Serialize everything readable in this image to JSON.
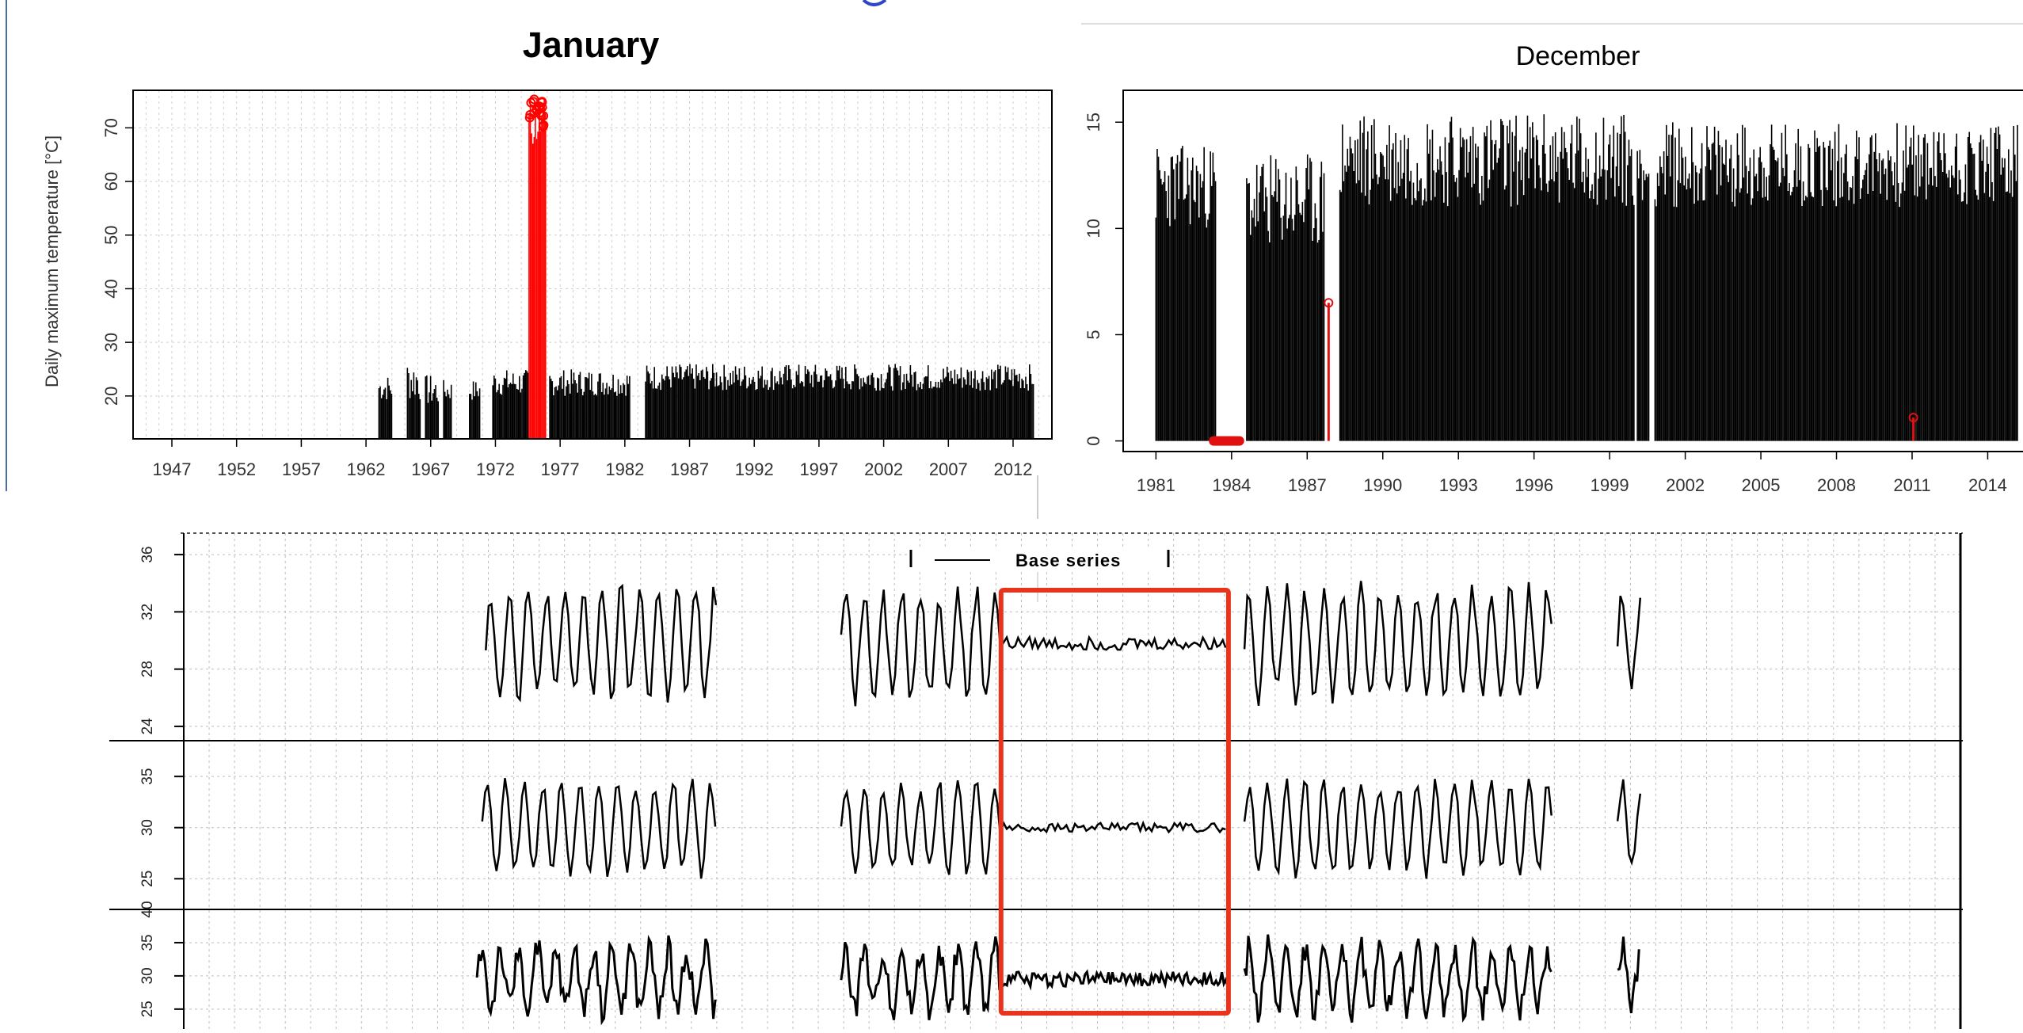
{
  "chart_data": [
    {
      "type": "bar",
      "title": "January",
      "xlabel": "",
      "ylabel": "Daily maximum temperature [°C]",
      "xlim": [
        1944,
        2015
      ],
      "ylim": [
        12,
        77
      ],
      "yticks": [
        20,
        30,
        40,
        50,
        60,
        70
      ],
      "xticks": [
        "1947",
        "1952",
        "1957",
        "1962",
        "1967",
        "1972",
        "1977",
        "1982",
        "1987",
        "1992",
        "1997",
        "2002",
        "2007",
        "2012"
      ],
      "grid": true,
      "series": [
        {
          "color": "#000000",
          "values": [
            {
              "start": 1963.0,
              "end": 1964.0,
              "low": 19,
              "high": 24
            },
            {
              "start": 1965.2,
              "end": 1966.2,
              "low": 19,
              "high": 27
            },
            {
              "start": 1966.6,
              "end": 1967.6,
              "low": 18,
              "high": 24
            },
            {
              "start": 1968.0,
              "end": 1968.6,
              "low": 19,
              "high": 23
            },
            {
              "start": 1970.0,
              "end": 1970.8,
              "low": 19,
              "high": 23
            },
            {
              "start": 1971.8,
              "end": 1974.6,
              "low": 20,
              "high": 25
            },
            {
              "start": 1976.2,
              "end": 1982.4,
              "low": 20,
              "high": 25
            },
            {
              "start": 1983.6,
              "end": 2013.6,
              "low": 21,
              "high": 26
            }
          ]
        },
        {
          "color": "#ff0000",
          "values": [
            {
              "start": 1974.6,
              "end": 1975.9,
              "low": 66,
              "high": 76
            }
          ]
        }
      ]
    },
    {
      "type": "bar",
      "title": "December",
      "xlim": [
        1979.7,
        2015.4
      ],
      "ylim": [
        -0.5,
        16.5
      ],
      "yticks": [
        0,
        5,
        10,
        15
      ],
      "xticks": [
        "1981",
        "1984",
        "1987",
        "1990",
        "1993",
        "1996",
        "1999",
        "2002",
        "2005",
        "2008",
        "2011",
        "2014"
      ],
      "grid": false,
      "series": [
        {
          "color": "#000000",
          "values": [
            {
              "start": 1981.0,
              "end": 1983.4,
              "low": 10,
              "high": 14
            },
            {
              "start": 1984.6,
              "end": 1987.7,
              "low": 9,
              "high": 13.5
            },
            {
              "start": 1988.3,
              "end": 2000.0,
              "low": 11,
              "high": 15.5
            },
            {
              "start": 2000.1,
              "end": 2000.6,
              "low": 11,
              "high": 14
            },
            {
              "start": 2000.8,
              "end": 2015.2,
              "low": 11,
              "high": 15
            }
          ]
        },
        {
          "color": "#e11010",
          "values": [
            {
              "start": 1983.1,
              "end": 1984.5,
              "low": 0,
              "high": 0
            },
            {
              "start": 1987.85,
              "end": 1987.85,
              "low": 0,
              "high": 6.5
            },
            {
              "start": 2011.05,
              "end": 2011.05,
              "low": 0,
              "high": 1.1
            }
          ]
        }
      ]
    },
    {
      "type": "line",
      "legend": [
        "Base series"
      ],
      "legend_position": "top",
      "grid": true,
      "x_range": [
        0,
        1
      ],
      "highlight": {
        "x_from": 0.46,
        "x_to": 0.588,
        "color": "#e8341c"
      },
      "panels": [
        {
          "ylim": [
            23,
            37.5
          ],
          "yticks": [
            24,
            28,
            32,
            36
          ],
          "segments": [
            [
              0.17,
              0.3
            ],
            [
              0.37,
              0.46
            ],
            [
              0.46,
              0.588
            ],
            [
              0.597,
              0.77
            ],
            [
              0.807,
              0.82
            ]
          ],
          "flat_range": [
            0.46,
            0.588
          ],
          "amplitude": 3.6,
          "mean": 29.8
        },
        {
          "ylim": [
            22,
            38.5
          ],
          "yticks": [
            25,
            30,
            35
          ],
          "segments": [
            [
              0.168,
              0.3
            ],
            [
              0.37,
              0.46
            ],
            [
              0.46,
              0.588
            ],
            [
              0.597,
              0.77
            ],
            [
              0.807,
              0.82
            ]
          ],
          "flat_range": [
            0.46,
            0.588
          ],
          "amplitude": 4.2,
          "mean": 30
        },
        {
          "ylim": [
            22,
            40
          ],
          "yticks": [
            25,
            30,
            35,
            40
          ],
          "segments": [
            [
              0.165,
              0.3
            ],
            [
              0.37,
              0.46
            ],
            [
              0.46,
              0.588
            ],
            [
              0.597,
              0.77
            ],
            [
              0.807,
              0.82
            ]
          ],
          "flat_range": [
            0.46,
            0.588
          ],
          "amplitude": 4.5,
          "mean": 29.5
        }
      ]
    }
  ]
}
